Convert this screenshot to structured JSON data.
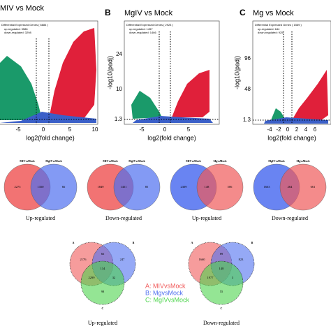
{
  "volcano": [
    {
      "letter": null,
      "title": "MIV vs Mock",
      "legend_title": "Differential Expressed Genes ( 6884 )",
      "up": "up-regulated: 3586",
      "down": "down-regulated: 3298",
      "xticks": [
        "-5",
        "0",
        "5",
        "10"
      ],
      "yticks": [],
      "xlabel": "log2(fold change)",
      "ylabel": null
    },
    {
      "letter": "B",
      "title": "MgIV vs Mock",
      "legend_title": "Differential Expressed Genes ( 2923 )",
      "up": "up-regulated: 1457",
      "down": "down-regulated: 1466",
      "xticks": [
        "-5",
        "0",
        "5"
      ],
      "yticks": [
        "1.3",
        "10",
        "24"
      ],
      "xlabel": "log2(fold change)",
      "ylabel": "-log10(padj)"
    },
    {
      "letter": "C",
      "title": "Mg vs Mock",
      "legend_title": "Differential Expressed Genes ( 1569 )",
      "up": "up-regulated: 644",
      "down": "down-regulated: 925",
      "xticks": [
        "-4",
        "-2",
        "0",
        "2",
        "4",
        "6"
      ],
      "yticks": [
        "1.3",
        "48",
        "96"
      ],
      "xlabel": "log2(fold change)",
      "ylabel": "-log10(padj)"
    }
  ],
  "venn2": [
    {
      "left": "MIVvsMock",
      "right": "MgIVvsMock",
      "counts": [
        "2275",
        "1350",
        "66"
      ],
      "caption": "Up-regulated"
    },
    {
      "left": "MIVvsMock",
      "right": "MgIVvsMock",
      "counts": [
        "1849",
        "1451",
        "85"
      ],
      "caption": "Down-regulated"
    },
    {
      "left": "MIVvsMock",
      "right": "MgvsMock",
      "counts": [
        "2309",
        "148",
        "506"
      ],
      "caption": "Up-regulated"
    },
    {
      "left": "MgIVvsMock",
      "right": "MgvsMock",
      "counts": [
        "1663",
        "264",
        "661"
      ],
      "caption": "Down-regulated"
    }
  ],
  "venn3": [
    {
      "counts": [
        "2176",
        "66",
        "247",
        "134",
        "2299",
        "32",
        "98"
      ],
      "caption": "Up-regulated"
    },
    {
      "counts": [
        "1660",
        "89",
        "823",
        "148",
        "1977",
        "3",
        "55"
      ],
      "caption": "Down-regulated"
    }
  ],
  "venn3_labels": [
    "A",
    "B",
    "C"
  ],
  "venn3_legend": [
    "A: MIVvsMock",
    "B: MgvsMock",
    "C: MgIVvsMock"
  ]
}
